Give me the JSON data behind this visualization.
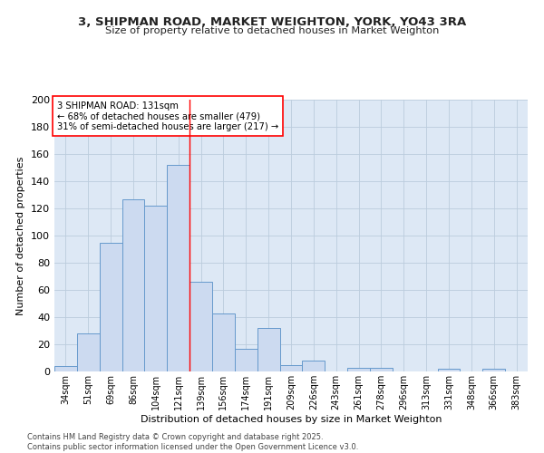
{
  "title_line1": "3, SHIPMAN ROAD, MARKET WEIGHTON, YORK, YO43 3RA",
  "title_line2": "Size of property relative to detached houses in Market Weighton",
  "xlabel": "Distribution of detached houses by size in Market Weighton",
  "ylabel": "Number of detached properties",
  "categories": [
    "34sqm",
    "51sqm",
    "69sqm",
    "86sqm",
    "104sqm",
    "121sqm",
    "139sqm",
    "156sqm",
    "174sqm",
    "191sqm",
    "209sqm",
    "226sqm",
    "243sqm",
    "261sqm",
    "278sqm",
    "296sqm",
    "313sqm",
    "331sqm",
    "348sqm",
    "366sqm",
    "383sqm"
  ],
  "values": [
    4,
    28,
    95,
    127,
    122,
    152,
    66,
    43,
    17,
    32,
    5,
    8,
    0,
    3,
    3,
    0,
    0,
    2,
    0,
    2,
    0
  ],
  "bar_color": "#ccdaf0",
  "bar_edge_color": "#6699cc",
  "grid_color": "#bbccdd",
  "bg_color": "#dde8f5",
  "fig_color": "#ffffff",
  "annotation_text_line1": "3 SHIPMAN ROAD: 131sqm",
  "annotation_text_line2": "← 68% of detached houses are smaller (479)",
  "annotation_text_line3": "31% of semi-detached houses are larger (217) →",
  "red_line_x": 5.5,
  "ylim": [
    0,
    200
  ],
  "yticks": [
    0,
    20,
    40,
    60,
    80,
    100,
    120,
    140,
    160,
    180,
    200
  ],
  "footer_line1": "Contains HM Land Registry data © Crown copyright and database right 2025.",
  "footer_line2": "Contains public sector information licensed under the Open Government Licence v3.0."
}
